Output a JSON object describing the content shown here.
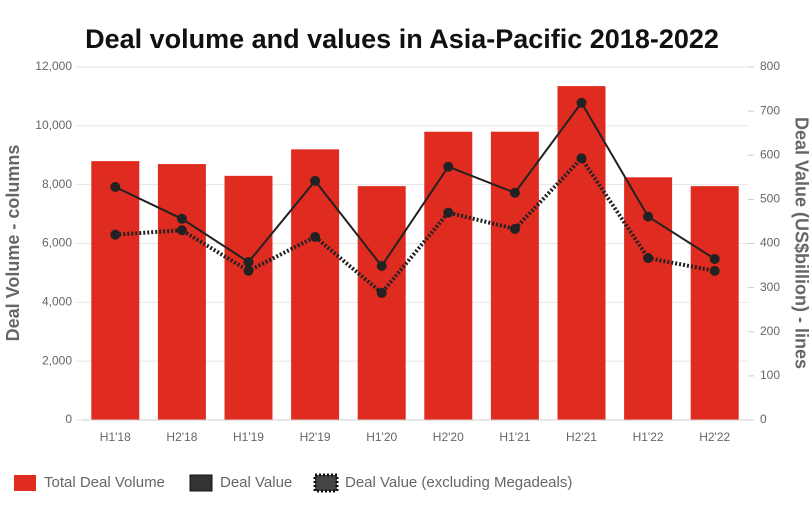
{
  "chart_data": {
    "type": "bar-line",
    "title": "Deal volume and values in Asia-Pacific 2018-2022",
    "y_label": "Deal Volume - columns",
    "y2_label": "Deal Value (US$billion) - lines",
    "categories": [
      "H1'18",
      "H2'18",
      "H1'19",
      "H2'19",
      "H1'20",
      "H2'20",
      "H1'21",
      "H2'21",
      "H1'22",
      "H2'22"
    ],
    "series": [
      {
        "name": "Total Deal Volume",
        "type": "bar",
        "color": "#e02b20",
        "values": [
          8800,
          8700,
          8300,
          9200,
          7950,
          9800,
          9800,
          11350,
          8250,
          7950
        ]
      },
      {
        "name": "Deal Value",
        "type": "line",
        "axis": "y2",
        "color": "#222222",
        "values": [
          528,
          456,
          358,
          542,
          349,
          574,
          515,
          719,
          461,
          365
        ]
      },
      {
        "name": "Deal Value (excluding Megadeals)",
        "type": "dotted-line",
        "axis": "y2",
        "color": "#222222",
        "values": [
          420,
          430,
          338,
          415,
          288,
          470,
          433,
          593,
          367,
          338
        ]
      }
    ],
    "ylim": [
      0,
      12000
    ],
    "yticks": [
      0,
      {
        "value": 2000,
        "label": "2,000"
      },
      {
        "value": 4000,
        "label": "4,000"
      },
      {
        "value": 6000,
        "label": "6,000"
      },
      {
        "value": 8000,
        "label": "8,000"
      },
      {
        "value": 10000,
        "label": "10,000"
      },
      {
        "value": 12000,
        "label": "12,000"
      }
    ],
    "y2lim": [
      0,
      800
    ],
    "y2ticks": [
      0,
      100,
      200,
      300,
      400,
      500,
      600,
      700,
      800
    ],
    "grid": true
  }
}
